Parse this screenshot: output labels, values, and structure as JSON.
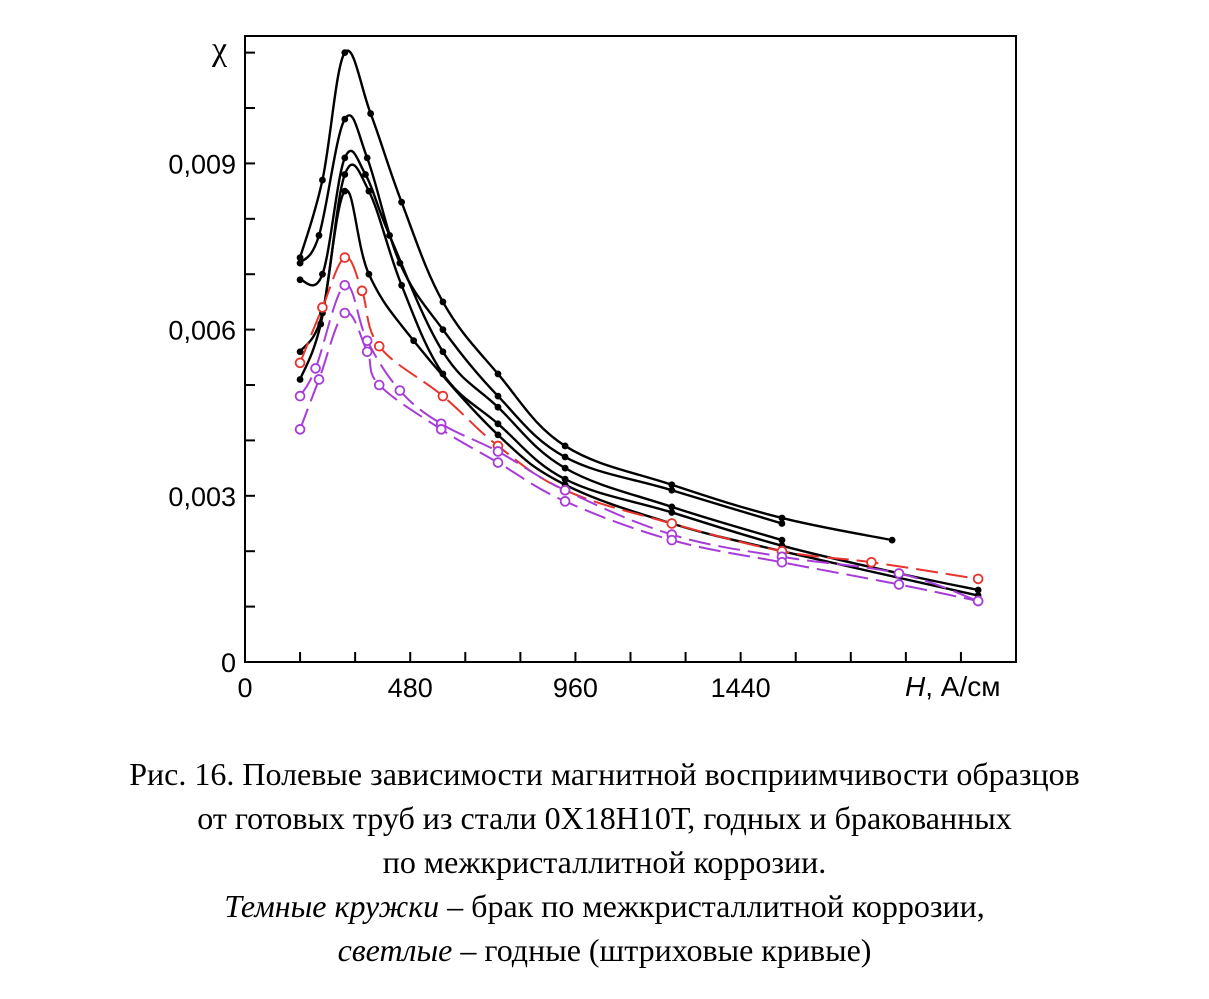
{
  "chart_data": {
    "type": "line",
    "ylabel": "χ",
    "xlabel_italic": "H",
    "xlabel_rest": ", А/см",
    "xlim": [
      0,
      2240
    ],
    "ylim": [
      0,
      0.0113
    ],
    "x_ticks": [
      0,
      480,
      960,
      1440
    ],
    "x_tick_labels": [
      "0",
      "480",
      "960",
      "1440"
    ],
    "x_minor_step": 160,
    "y_ticks": [
      0,
      0.003,
      0.006,
      0.009
    ],
    "y_tick_labels": [
      "0",
      "0,003",
      "0,006",
      "0,009"
    ],
    "y_minor_step": 0.001,
    "grid": false,
    "series": [
      {
        "style": "solid",
        "marker": "filled",
        "color": "#000000",
        "x": [
          160,
          225,
          290,
          365,
          455,
          575,
          735,
          930,
          1240,
          1560,
          1880
        ],
        "y": [
          0.0073,
          0.0087,
          0.011,
          0.0099,
          0.0083,
          0.0065,
          0.0052,
          0.0039,
          0.0032,
          0.0026,
          0.0022
        ]
      },
      {
        "style": "solid",
        "marker": "filled",
        "color": "#000000",
        "x": [
          160,
          215,
          290,
          355,
          450,
          575,
          735,
          930,
          1240,
          1560
        ],
        "y": [
          0.0072,
          0.0077,
          0.0098,
          0.0091,
          0.0072,
          0.006,
          0.0048,
          0.0037,
          0.0031,
          0.0025
        ]
      },
      {
        "style": "solid",
        "marker": "filled",
        "color": "#000000",
        "x": [
          160,
          225,
          290,
          350,
          420,
          575,
          735,
          930,
          1240,
          1560
        ],
        "y": [
          0.0069,
          0.007,
          0.0091,
          0.0088,
          0.0077,
          0.0056,
          0.0046,
          0.0035,
          0.0028,
          0.0022
        ]
      },
      {
        "style": "solid",
        "marker": "filled",
        "color": "#000000",
        "x": [
          160,
          225,
          290,
          360,
          455,
          575,
          735,
          930,
          1240,
          1560
        ],
        "y": [
          0.0056,
          0.0063,
          0.0088,
          0.0085,
          0.0068,
          0.0052,
          0.0043,
          0.0033,
          0.0027,
          0.0021
        ],
        "x_extra": [
          1900,
          2130
        ],
        "y_extra": [
          0.0016,
          0.0013
        ]
      },
      {
        "style": "solid",
        "marker": "filled",
        "color": "#000000",
        "x": [
          160,
          220,
          290,
          360,
          490,
          735,
          930,
          1240,
          1560,
          2130
        ],
        "y": [
          0.0051,
          0.0061,
          0.0085,
          0.007,
          0.0058,
          0.0041,
          0.0032,
          0.0025,
          0.002,
          0.0012
        ]
      },
      {
        "style": "dashed",
        "marker": "open",
        "color": "#e8342c",
        "x": [
          160,
          225,
          290,
          340,
          390,
          575,
          735,
          930,
          1240,
          1560,
          1820,
          2130
        ],
        "y": [
          0.0054,
          0.0064,
          0.0073,
          0.0067,
          0.0057,
          0.0048,
          0.0039,
          0.0031,
          0.0025,
          0.002,
          0.0018,
          0.0015
        ]
      },
      {
        "style": "dashed",
        "marker": "open",
        "color": "#a83cd8",
        "x": [
          160,
          205,
          290,
          355,
          450,
          570,
          735,
          930,
          1240,
          1560,
          1900,
          2130
        ],
        "y": [
          0.0048,
          0.0053,
          0.0068,
          0.0058,
          0.0049,
          0.0043,
          0.0038,
          0.0031,
          0.0023,
          0.0019,
          0.0016,
          0.0011
        ]
      },
      {
        "style": "dashed",
        "marker": "open",
        "color": "#a83cd8",
        "x": [
          160,
          215,
          290,
          355,
          390,
          570,
          735,
          930,
          1240,
          1560,
          1900,
          2130
        ],
        "y": [
          0.0042,
          0.0051,
          0.0063,
          0.0056,
          0.005,
          0.0042,
          0.0036,
          0.0029,
          0.0022,
          0.0018,
          0.0014,
          0.0011
        ]
      }
    ]
  },
  "caption": {
    "line1": "Рис. 16. Полевые зависимости магнитной восприимчивости образцов",
    "line2": "от готовых труб из стали 0Х18Н10Т, годных и бракованных",
    "line3": "по межкристаллитной коррозии.",
    "line4_italic": "Темные кружки",
    "line4_rest": " – брак по межкристаллитной коррозии,",
    "line5_italic": "светлые",
    "line5_rest": " – годные (штриховые кривые)"
  }
}
